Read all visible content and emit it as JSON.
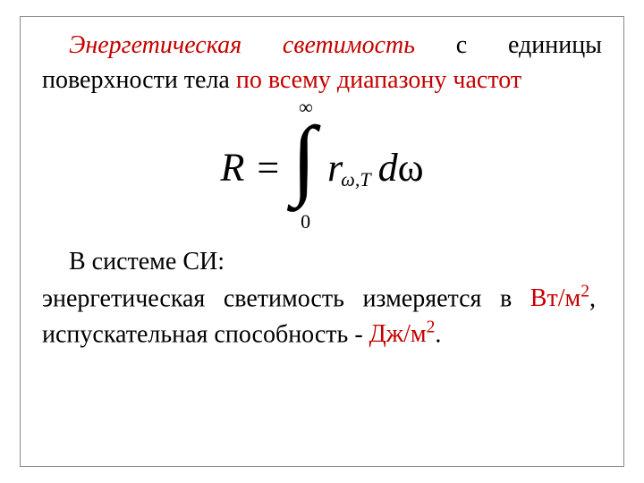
{
  "para1": {
    "lead": "Энергетическая светимость",
    "mid": " с единицы поверхности тела ",
    "tail": "по всему диапазону частот"
  },
  "formula": {
    "upper": "∞",
    "lower": "0",
    "R": "R",
    "eq": "=",
    "r": "r",
    "sub_omega": "ω",
    "sub_comma": ",",
    "sub_T": "T",
    "d": "d",
    "omega": "ω"
  },
  "para2": {
    "line1": "В системе СИ:",
    "t1": "энергетическая светимость",
    "t2": " измеряется в ",
    "u1a": "Вт/м",
    "u1s": "2",
    "comma": ",  ",
    "t3": "испускательная способность",
    "dash": " - ",
    "u2a": "Дж/м",
    "u2s": "2",
    "dot": "."
  },
  "colors": {
    "red": "#c40000",
    "text": "#000000",
    "border": "#8a8a8a",
    "bg": "#ffffff"
  },
  "fontsize_body": 28,
  "fontsize_formula": 44
}
